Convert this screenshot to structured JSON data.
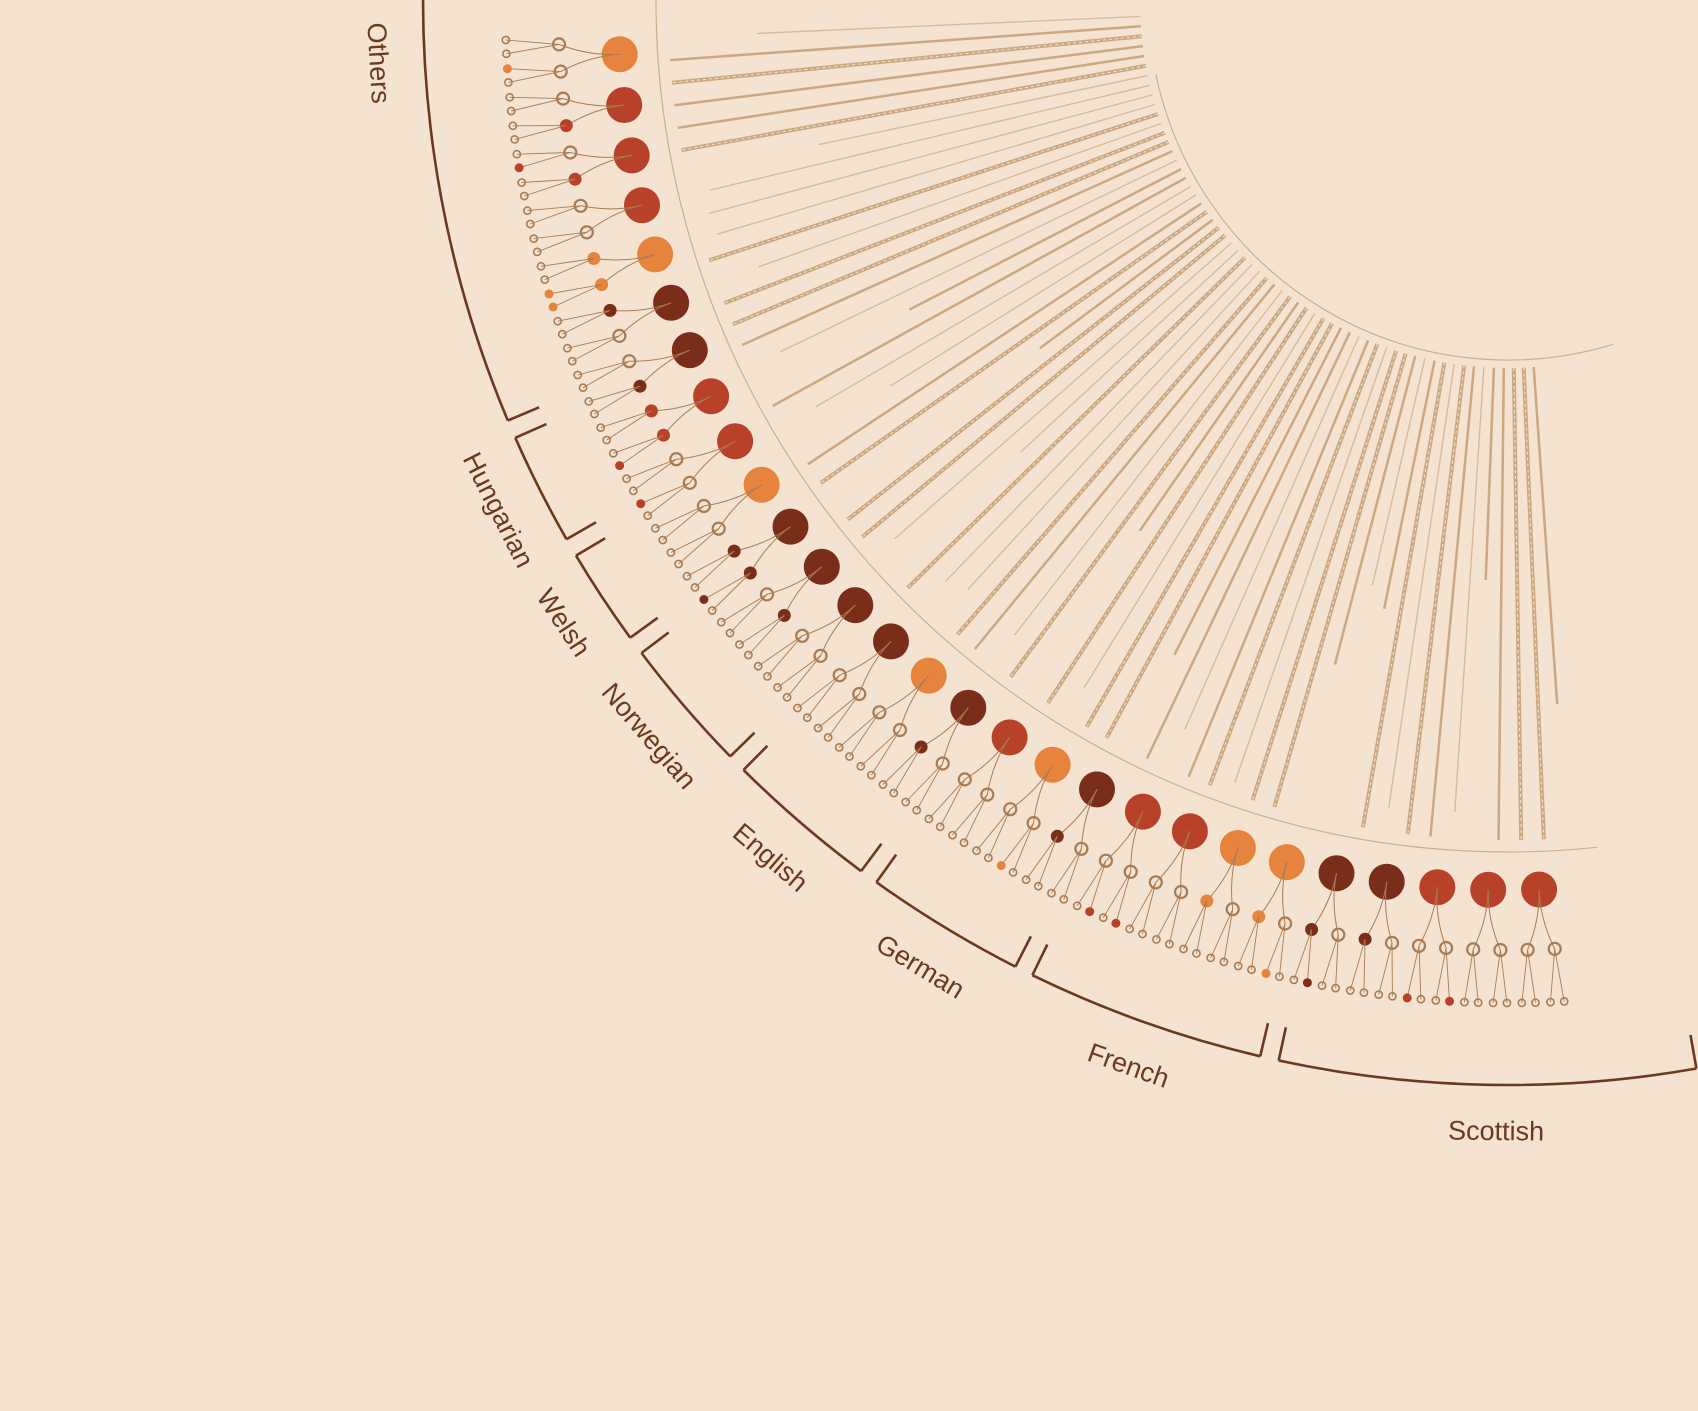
{
  "colors": {
    "background": "#f5e3d1",
    "bracket": "#6b3a1e",
    "ray": "#c8a47d",
    "ring_line": "#cfae8a",
    "dark": "#7a2e1a",
    "red": "#b8412a",
    "orange": "#e6843e",
    "open": "#a87b52"
  },
  "groups": [
    {
      "name": "Others"
    },
    {
      "name": "Hungarian"
    },
    {
      "name": "Welsh"
    },
    {
      "name": "Norwegian"
    },
    {
      "name": "English"
    },
    {
      "name": "German"
    },
    {
      "name": "French"
    },
    {
      "name": "Scottish"
    }
  ],
  "legend_encoding": {
    "node_kinds": [
      "root",
      "child",
      "grandchild"
    ],
    "fill_kinds": [
      "dark",
      "red",
      "orange",
      "open"
    ]
  }
}
